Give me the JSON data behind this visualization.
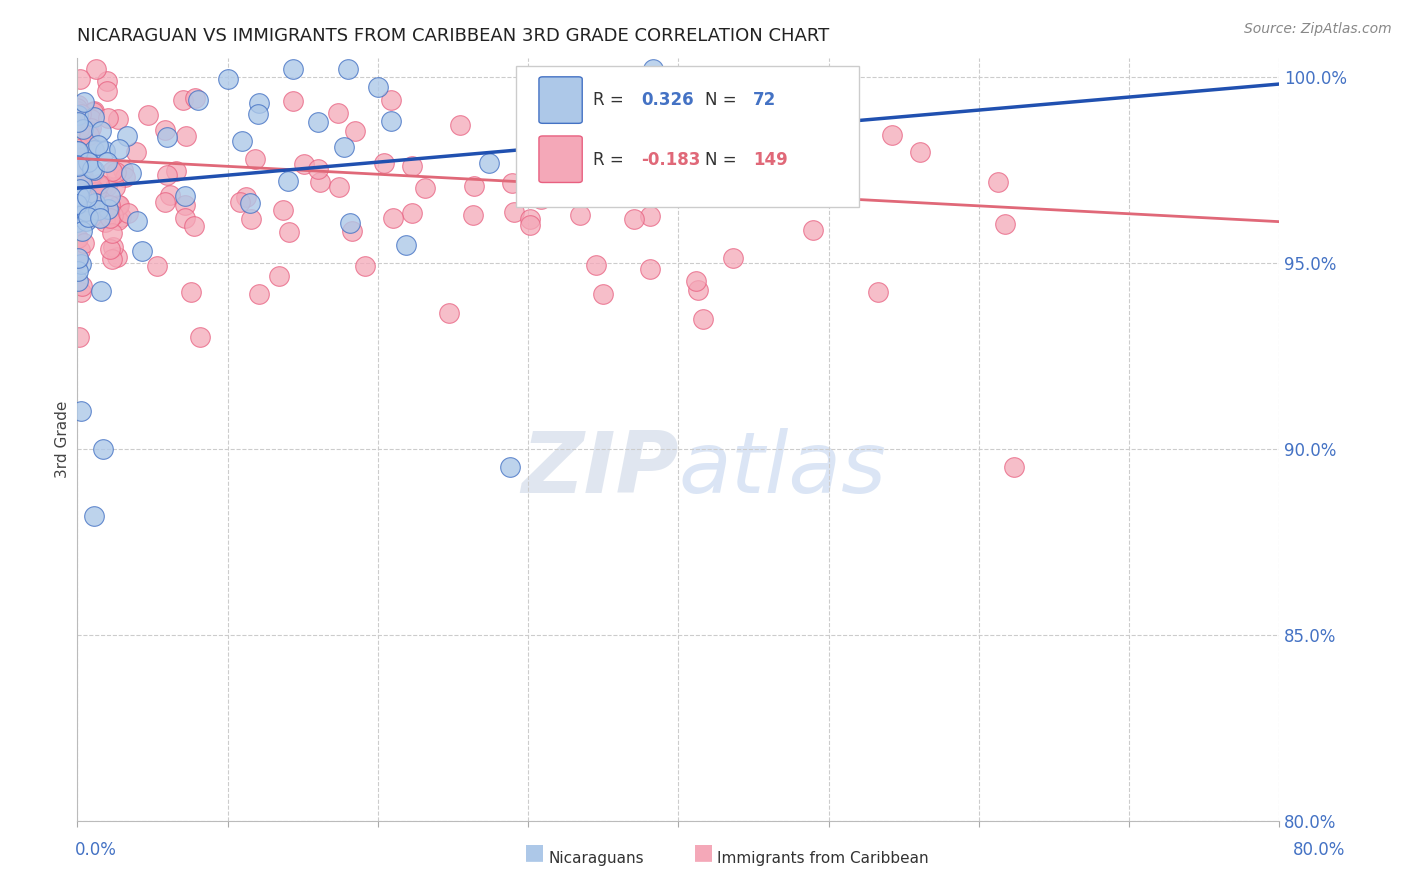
{
  "title": "NICARAGUAN VS IMMIGRANTS FROM CARIBBEAN 3RD GRADE CORRELATION CHART",
  "source": "Source: ZipAtlas.com",
  "ylabel": "3rd Grade",
  "blue_R": 0.326,
  "blue_N": 72,
  "pink_R": -0.183,
  "pink_N": 149,
  "blue_color": "#adc8e8",
  "pink_color": "#f4a8b8",
  "blue_edge_color": "#4472c4",
  "pink_edge_color": "#e86080",
  "blue_line_color": "#2050b0",
  "pink_line_color": "#e06878",
  "legend_blue_label": "Nicaraguans",
  "legend_pink_label": "Immigrants from Caribbean",
  "title_color": "#222222",
  "axis_label_color": "#4472c4",
  "background_color": "#ffffff",
  "grid_color": "#cccccc",
  "xlim": [
    0.0,
    0.8
  ],
  "ylim": [
    0.8,
    1.005
  ],
  "yticks": [
    0.8,
    0.85,
    0.9,
    0.95,
    1.0
  ],
  "yticklabels": [
    "80.0%",
    "85.0%",
    "90.0%",
    "95.0%",
    "100.0%"
  ],
  "blue_line_x": [
    0.0,
    0.8
  ],
  "blue_line_y": [
    0.97,
    0.998
  ],
  "pink_line_x": [
    0.0,
    0.8
  ],
  "pink_line_y": [
    0.978,
    0.961
  ]
}
